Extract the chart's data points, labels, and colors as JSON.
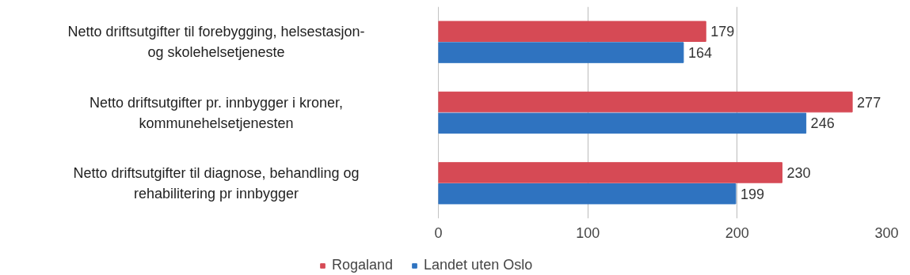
{
  "chart_data": {
    "type": "bar",
    "orientation": "horizontal",
    "categories": [
      "Netto driftsutgifter til forebygging, helsestasjon-\nog skolehelsetjeneste",
      "Netto driftsutgifter pr. innbygger i kroner,\nkommunehelsetjenesten",
      "Netto driftsutgifter til diagnose, behandling og\nrehabilitering pr innbygger"
    ],
    "series": [
      {
        "name": "Rogaland",
        "color": "#d64a55",
        "values": [
          179,
          277,
          230
        ]
      },
      {
        "name": "Landet uten Oslo",
        "color": "#2f73c0",
        "values": [
          164,
          246,
          199
        ]
      }
    ],
    "xlim": [
      0,
      300
    ],
    "xticks": [
      0,
      100,
      200,
      300
    ],
    "grid": "x",
    "legend": "bottom",
    "data_labels": true
  }
}
